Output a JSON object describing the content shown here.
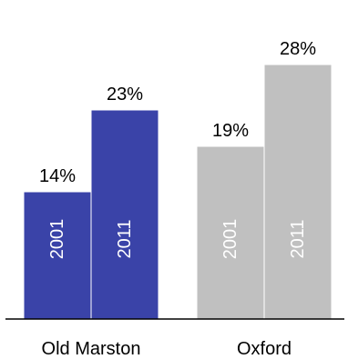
{
  "chart_data": {
    "type": "bar",
    "categories": [
      "Old Marston",
      "Oxford"
    ],
    "series": [
      {
        "values": [
          14,
          19
        ],
        "colors": [
          "#3a43a8",
          "#c0c0c0"
        ],
        "bar_label": "2001"
      },
      {
        "values": [
          23,
          28
        ],
        "colors": [
          "#3a43a8",
          "#c0c0c0"
        ],
        "bar_label": "2011"
      }
    ],
    "value_suffix": "%",
    "ylim": [
      0,
      30
    ],
    "grid": false,
    "legend": "none",
    "axis_color": "#000000"
  }
}
